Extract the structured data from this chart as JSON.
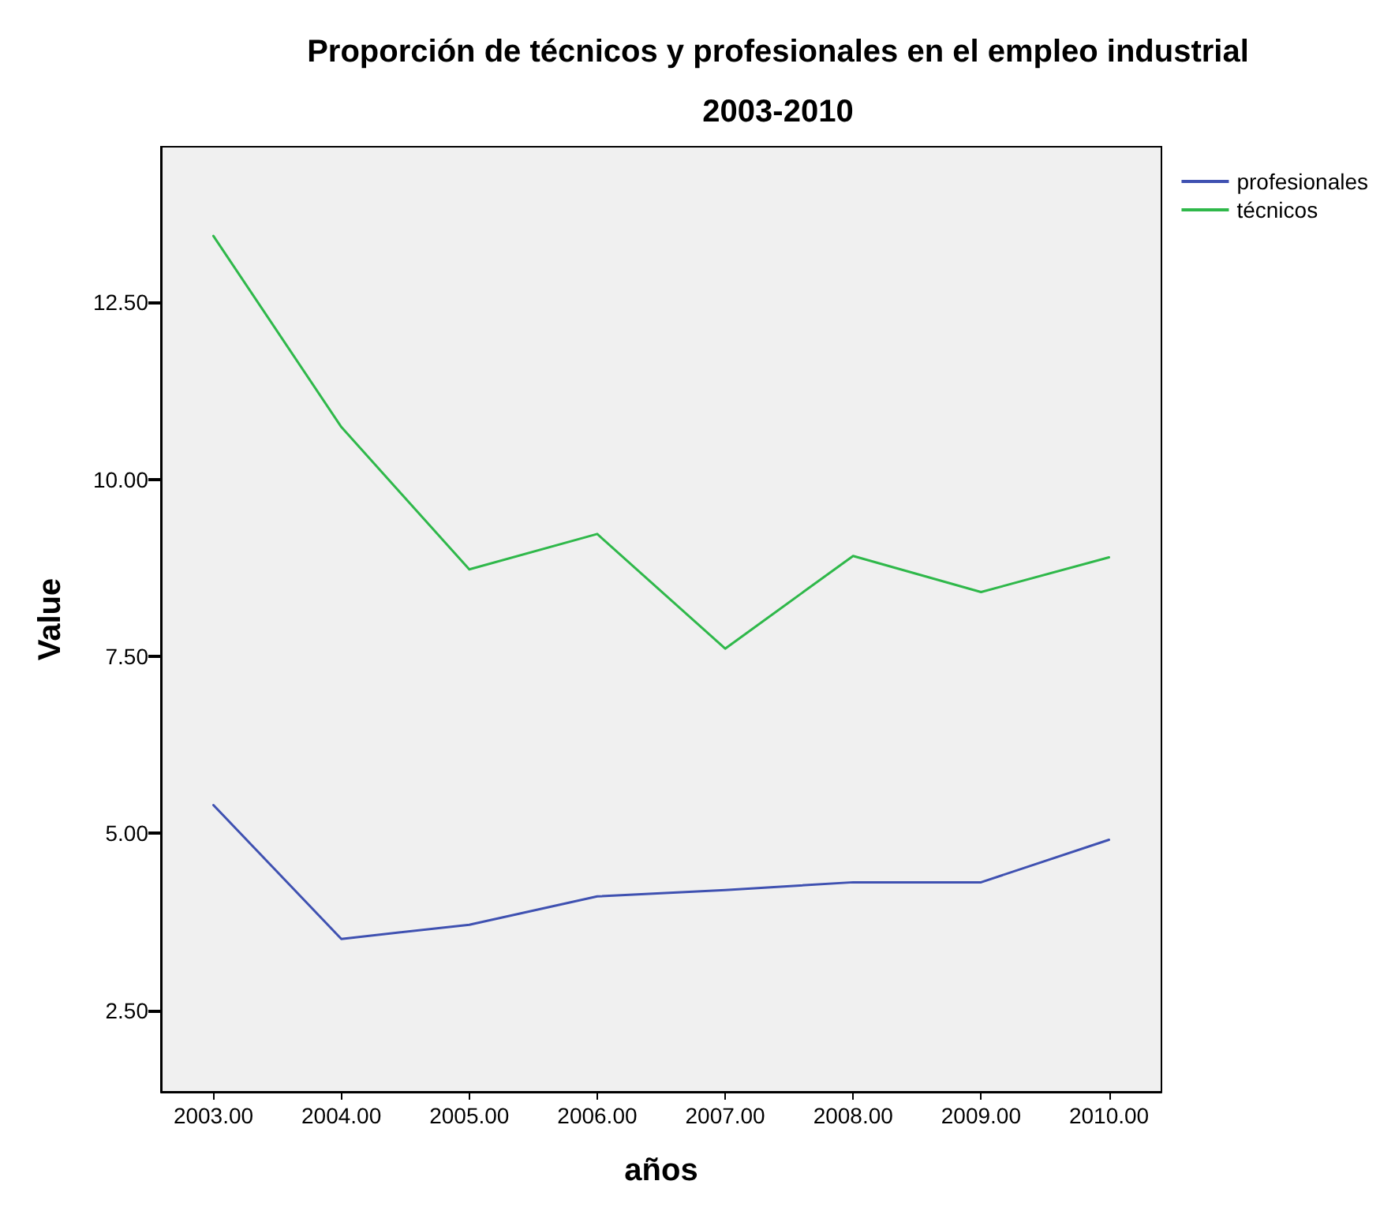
{
  "chart_data": {
    "type": "line",
    "title": "Proporción de técnicos y profesionales en el empleo industrial",
    "subtitle": "2003-2010",
    "xlabel": "años",
    "ylabel": "Value",
    "x": [
      2003,
      2004,
      2005,
      2006,
      2007,
      2008,
      2009,
      2010
    ],
    "series": [
      {
        "name": "profesionales",
        "color": "#3f51b1",
        "values": [
          5.4,
          3.51,
          3.71,
          4.11,
          4.2,
          4.31,
          4.31,
          4.91
        ]
      },
      {
        "name": "técnicos",
        "color": "#2fb84a",
        "values": [
          13.44,
          10.74,
          8.73,
          9.23,
          7.61,
          8.92,
          8.41,
          8.9
        ]
      }
    ],
    "xlim": [
      2002.59,
      2010.41
    ],
    "xticks": [
      {
        "value": 2003,
        "label": "2003.00"
      },
      {
        "value": 2004,
        "label": "2004.00"
      },
      {
        "value": 2005,
        "label": "2005.00"
      },
      {
        "value": 2006,
        "label": "2006.00"
      },
      {
        "value": 2007,
        "label": "2007.00"
      },
      {
        "value": 2008,
        "label": "2008.00"
      },
      {
        "value": 2009,
        "label": "2009.00"
      },
      {
        "value": 2010,
        "label": "2010.00"
      }
    ],
    "ylim": [
      1.35,
      14.7
    ],
    "yticks": [
      {
        "value": 2.5,
        "label": "2.50"
      },
      {
        "value": 5,
        "label": "5.00"
      },
      {
        "value": 7.5,
        "label": "7.50"
      },
      {
        "value": 10,
        "label": "10.00"
      },
      {
        "value": 12.5,
        "label": "12.50"
      }
    ],
    "grid": false,
    "legend": "top right",
    "marker": "none",
    "line_style": "solid"
  }
}
